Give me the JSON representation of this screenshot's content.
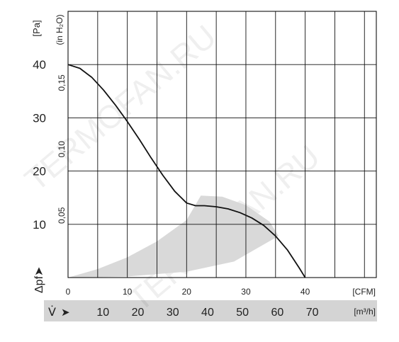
{
  "chart_data": {
    "type": "line",
    "title": "",
    "xlabel": "",
    "ylabel": "",
    "y_axis": {
      "symbol": "Δpf",
      "arrow": "➤",
      "unit": "[Pa]",
      "range": [
        0,
        50
      ],
      "ticks": [
        {
          "value": 10,
          "label": "10"
        },
        {
          "value": 20,
          "label": "20"
        },
        {
          "value": 30,
          "label": "30"
        },
        {
          "value": 40,
          "label": "40"
        }
      ]
    },
    "y_axis_secondary": {
      "unit": "(in H₂O)",
      "ticks": [
        {
          "value": 0.05,
          "label": "0,05"
        },
        {
          "value": 0.1,
          "label": "0,10"
        },
        {
          "value": 0.15,
          "label": "0,15"
        }
      ]
    },
    "x_axis": {
      "unit": "[CFM]",
      "range": [
        0,
        52
      ],
      "ticks": [
        {
          "value": 0,
          "label": "0"
        },
        {
          "value": 10,
          "label": "10"
        },
        {
          "value": 20,
          "label": "20"
        },
        {
          "value": 30,
          "label": "30"
        },
        {
          "value": 40,
          "label": "40"
        }
      ]
    },
    "x_axis_secondary": {
      "symbol": "V̇",
      "arrow": "➤",
      "unit": "[m³/h]",
      "ticks": [
        {
          "value": 10,
          "label": "10"
        },
        {
          "value": 20,
          "label": "20"
        },
        {
          "value": 30,
          "label": "30"
        },
        {
          "value": 40,
          "label": "40"
        },
        {
          "value": 50,
          "label": "50"
        },
        {
          "value": 60,
          "label": "60"
        },
        {
          "value": 70,
          "label": "70"
        }
      ]
    },
    "grid": true,
    "series": [
      {
        "points": [
          [
            0,
            40
          ],
          [
            2,
            39.3
          ],
          [
            4,
            37.6
          ],
          [
            6,
            35.2
          ],
          [
            8,
            32.4
          ],
          [
            10,
            29.3
          ],
          [
            12,
            26.0
          ],
          [
            14,
            22.5
          ],
          [
            16,
            19.2
          ],
          [
            18,
            16.2
          ],
          [
            20,
            14.0
          ],
          [
            21.5,
            13.5
          ],
          [
            23,
            13.5
          ],
          [
            25,
            13.3
          ],
          [
            27,
            12.9
          ],
          [
            29,
            12.2
          ],
          [
            31,
            11.2
          ],
          [
            33,
            9.8
          ],
          [
            35,
            7.8
          ],
          [
            37,
            5.2
          ],
          [
            39,
            1.8
          ],
          [
            40,
            0
          ]
        ]
      }
    ],
    "operating_region": {
      "color": "#d9d9d9",
      "points": [
        [
          0,
          0
        ],
        [
          5,
          1.6
        ],
        [
          10,
          3.8
        ],
        [
          15,
          6.8
        ],
        [
          20,
          10.8
        ],
        [
          22.4,
          15.4
        ],
        [
          26,
          15.2
        ],
        [
          30,
          13.6
        ],
        [
          34,
          10.5
        ],
        [
          35.5,
          7.8
        ],
        [
          28,
          3.0
        ],
        [
          20,
          1.1
        ],
        [
          10,
          0.2
        ],
        [
          0,
          0
        ]
      ]
    },
    "watermark": "TERMOFAN.RU",
    "colors": {
      "curve": "#111111",
      "grid": "#111111",
      "band": "#d9d9d9",
      "watermark": "#000000"
    }
  }
}
